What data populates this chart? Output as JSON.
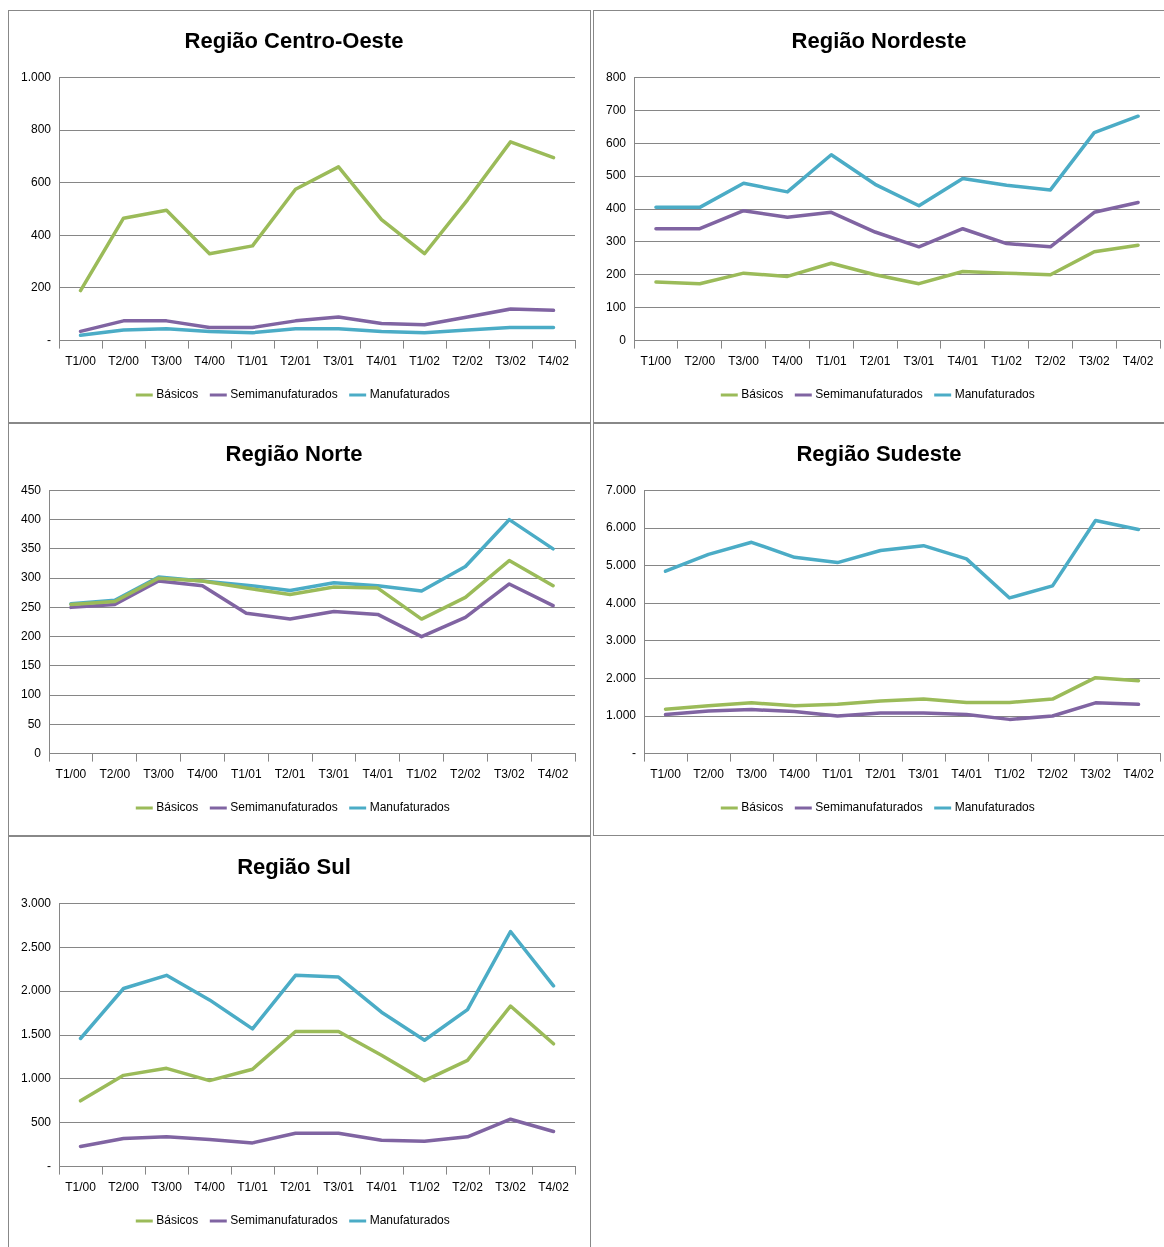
{
  "chart_data": [
    {
      "type": "line",
      "title": "Região Centro-Oeste",
      "categories": [
        "T1/00",
        "T2/00",
        "T3/00",
        "T4/00",
        "T1/01",
        "T2/01",
        "T3/01",
        "T4/01",
        "T1/02",
        "T2/02",
        "T3/02",
        "T4/02"
      ],
      "series": [
        {
          "name": "Básicos",
          "color": "#9bbb59",
          "values": [
            190,
            465,
            495,
            330,
            360,
            575,
            660,
            460,
            330,
            535,
            755,
            695
          ]
        },
        {
          "name": "Semimanufaturados",
          "color": "#8064a2",
          "values": [
            35,
            75,
            75,
            50,
            50,
            75,
            90,
            65,
            60,
            90,
            120,
            115
          ]
        },
        {
          "name": "Manufaturados",
          "color": "#4bacc6",
          "values": [
            20,
            40,
            45,
            35,
            30,
            45,
            45,
            35,
            30,
            40,
            50,
            50
          ]
        }
      ],
      "ylim": [
        0,
        1000
      ],
      "yticks": [
        {
          "value": 0,
          "label": "-"
        },
        200,
        400,
        600,
        800,
        {
          "value": 1000,
          "label": "1.000"
        }
      ],
      "grid": "y",
      "legend": "bottom",
      "marker": "none",
      "line_style": "solid"
    },
    {
      "type": "line",
      "title": "Região Nordeste",
      "categories": [
        "T1/00",
        "T2/00",
        "T3/00",
        "T4/00",
        "T1/01",
        "T2/01",
        "T3/01",
        "T4/01",
        "T1/02",
        "T2/02",
        "T3/02",
        "T4/02"
      ],
      "series": [
        {
          "name": "Básicos",
          "color": "#9bbb59",
          "values": [
            178,
            173,
            205,
            195,
            235,
            200,
            173,
            210,
            205,
            200,
            270,
            290
          ]
        },
        {
          "name": "Semimanufaturados",
          "color": "#8064a2",
          "values": [
            340,
            340,
            395,
            375,
            390,
            330,
            285,
            340,
            295,
            285,
            390,
            420
          ]
        },
        {
          "name": "Manufaturados",
          "color": "#4bacc6",
          "values": [
            405,
            405,
            478,
            452,
            565,
            475,
            410,
            493,
            472,
            458,
            632,
            682
          ]
        }
      ],
      "ylim": [
        0,
        800
      ],
      "yticks": [
        0,
        100,
        200,
        300,
        400,
        500,
        600,
        700,
        800
      ],
      "grid": "y",
      "legend": "bottom",
      "marker": "none",
      "line_style": "solid"
    },
    {
      "type": "line",
      "title": "Região Norte",
      "categories": [
        "T1/00",
        "T2/00",
        "T3/00",
        "T4/00",
        "T1/01",
        "T2/01",
        "T3/01",
        "T4/01",
        "T1/02",
        "T2/02",
        "T3/02",
        "T4/02"
      ],
      "series": [
        {
          "name": "Básicos",
          "color": "#9bbb59",
          "values": [
            255,
            260,
            300,
            295,
            283,
            272,
            285,
            283,
            230,
            267,
            330,
            287
          ]
        },
        {
          "name": "Semimanufaturados",
          "color": "#8064a2",
          "values": [
            250,
            255,
            295,
            287,
            240,
            230,
            243,
            238,
            200,
            233,
            290,
            253
          ]
        },
        {
          "name": "Manufaturados",
          "color": "#4bacc6",
          "values": [
            256,
            262,
            302,
            295,
            288,
            279,
            292,
            287,
            278,
            320,
            400,
            350
          ]
        }
      ],
      "ylim": [
        0,
        450
      ],
      "yticks": [
        0,
        50,
        100,
        150,
        200,
        250,
        300,
        350,
        400,
        450
      ],
      "grid": "y",
      "legend": "bottom",
      "marker": "none",
      "line_style": "solid"
    },
    {
      "type": "line",
      "title": "Região Sudeste",
      "categories": [
        "T1/00",
        "T2/00",
        "T3/00",
        "T4/00",
        "T1/01",
        "T2/01",
        "T3/01",
        "T4/01",
        "T1/02",
        "T2/02",
        "T3/02",
        "T4/02"
      ],
      "series": [
        {
          "name": "Básicos",
          "color": "#9bbb59",
          "values": [
            1180,
            1270,
            1350,
            1270,
            1310,
            1400,
            1450,
            1360,
            1360,
            1450,
            2020,
            1940
          ]
        },
        {
          "name": "Semimanufaturados",
          "color": "#8064a2",
          "values": [
            1040,
            1130,
            1170,
            1120,
            1000,
            1080,
            1080,
            1040,
            910,
            1000,
            1350,
            1310
          ]
        },
        {
          "name": "Manufaturados",
          "color": "#4bacc6",
          "values": [
            4850,
            5300,
            5620,
            5220,
            5080,
            5400,
            5530,
            5180,
            4140,
            4460,
            6200,
            5960
          ]
        }
      ],
      "ylim": [
        0,
        7000
      ],
      "yticks": [
        {
          "value": 0,
          "label": "-"
        },
        {
          "value": 1000,
          "label": "1.000"
        },
        {
          "value": 2000,
          "label": "2.000"
        },
        {
          "value": 3000,
          "label": "3.000"
        },
        {
          "value": 4000,
          "label": "4.000"
        },
        {
          "value": 5000,
          "label": "5.000"
        },
        {
          "value": 6000,
          "label": "6.000"
        },
        {
          "value": 7000,
          "label": "7.000"
        }
      ],
      "grid": "y",
      "legend": "bottom",
      "marker": "none",
      "line_style": "solid"
    },
    {
      "type": "line",
      "title": "Região Sul",
      "categories": [
        "T1/00",
        "T2/00",
        "T3/00",
        "T4/00",
        "T1/01",
        "T2/01",
        "T3/01",
        "T4/01",
        "T1/02",
        "T2/02",
        "T3/02",
        "T4/02"
      ],
      "series": [
        {
          "name": "Básicos",
          "color": "#9bbb59",
          "values": [
            750,
            1040,
            1120,
            980,
            1110,
            1540,
            1540,
            1270,
            980,
            1210,
            1830,
            1400
          ]
        },
        {
          "name": "Semimanufaturados",
          "color": "#8064a2",
          "values": [
            230,
            320,
            340,
            310,
            270,
            380,
            380,
            300,
            290,
            340,
            540,
            400
          ]
        },
        {
          "name": "Manufaturados",
          "color": "#4bacc6",
          "values": [
            1460,
            2030,
            2180,
            1900,
            1570,
            2180,
            2160,
            1760,
            1440,
            1790,
            2680,
            2060
          ]
        }
      ],
      "ylim": [
        0,
        3000
      ],
      "yticks": [
        {
          "value": 0,
          "label": "-"
        },
        500,
        {
          "value": 1000,
          "label": "1.000"
        },
        {
          "value": 1500,
          "label": "1.500"
        },
        {
          "value": 2000,
          "label": "2.000"
        },
        {
          "value": 2500,
          "label": "2.500"
        },
        {
          "value": 3000,
          "label": "3.000"
        }
      ],
      "grid": "y",
      "legend": "bottom",
      "marker": "none",
      "line_style": "solid"
    }
  ]
}
